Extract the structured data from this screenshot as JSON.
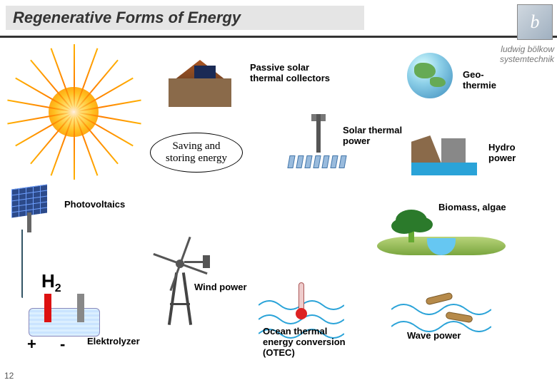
{
  "title": "Regenerative Forms of Energy",
  "brand_line1": "ludwig bölkow",
  "brand_line2": "systemtechnik",
  "page_number": "12",
  "labels": {
    "passive_solar": "Passive solar\nthermal collectors",
    "geothermie": "Geo-\nthermie",
    "saving": "Saving and\nstoring energy",
    "solar_thermal": "Solar thermal\npower",
    "hydro": "Hydro\npower",
    "photovoltaics": "Photovoltaics",
    "biomass": "Biomass, algae",
    "h2": "H",
    "h2_sub": "2",
    "wind": "Wind power",
    "plus": "+",
    "minus": "-",
    "electrolyzer": "Elektrolyzer",
    "otec": "Ocean thermal\nenergy conversion\n(OTEC)",
    "wave": "Wave power"
  },
  "colors": {
    "title_bg": "#e5e5e5",
    "rule": "#333333",
    "sun_outer": "#ff8000",
    "panel": "#2c4a8a",
    "water": "#66c7f2",
    "green": "#2b7a2b"
  },
  "sun": {
    "ray_count": 18
  },
  "tower": {
    "mirror_count": 7
  }
}
